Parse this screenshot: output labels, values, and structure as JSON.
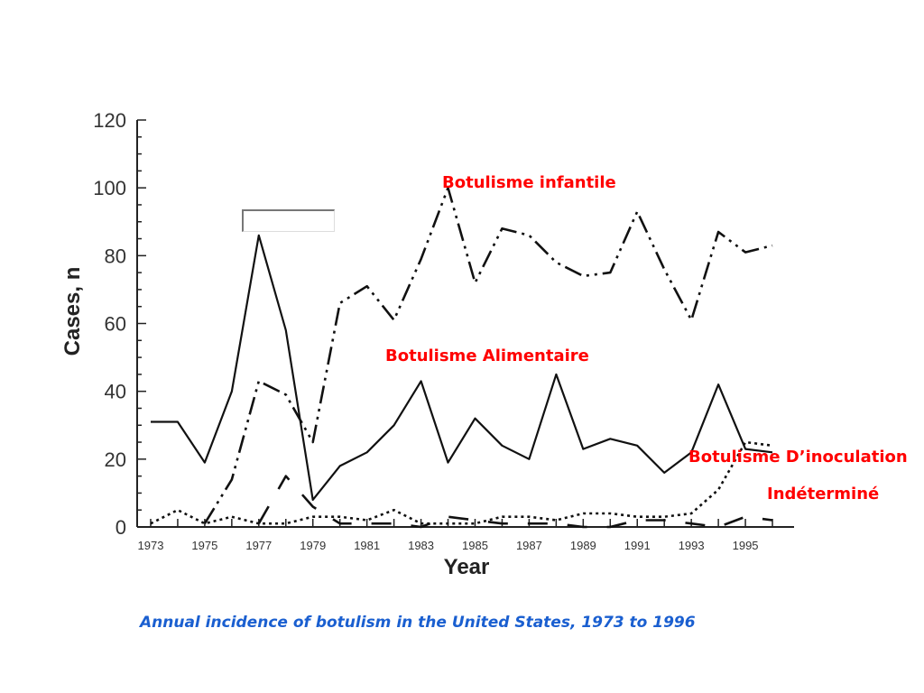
{
  "chart_data": {
    "type": "line",
    "xlabel": "Year",
    "ylabel": "Cases, n",
    "xlim": [
      1972.5,
      1996.8
    ],
    "ylim": [
      0,
      120
    ],
    "y_ticks": [
      "0",
      "20",
      "40",
      "60",
      "80",
      "100",
      "120"
    ],
    "x_ticks": [
      "1973",
      "1975",
      "1977",
      "1979",
      "1981",
      "1983",
      "1985",
      "1987",
      "1989",
      "1991",
      "1993",
      "1995"
    ],
    "x": [
      1973,
      1974,
      1975,
      1976,
      1977,
      1978,
      1979,
      1980,
      1981,
      1982,
      1983,
      1984,
      1985,
      1986,
      1987,
      1988,
      1989,
      1990,
      1991,
      1992,
      1993,
      1994,
      1995,
      1996
    ],
    "series": [
      {
        "name": "Botulisme Alimentaire",
        "style": "solid",
        "values": [
          31,
          31,
          19,
          40,
          86,
          58,
          8,
          18,
          22,
          30,
          43,
          19,
          32,
          24,
          20,
          45,
          23,
          26,
          24,
          16,
          22,
          42,
          23,
          22
        ]
      },
      {
        "name": "Botulisme infantile",
        "style": "dash-dot-dot",
        "values": [
          null,
          null,
          1,
          14,
          43,
          39,
          25,
          66,
          71,
          61,
          79,
          100,
          72,
          88,
          86,
          78,
          74,
          75,
          93,
          76,
          61,
          87,
          81,
          83
        ]
      },
      {
        "name": "Botulisme D’inoculation",
        "style": "dotted",
        "values": [
          1,
          5,
          1,
          3,
          1,
          1,
          3,
          3,
          2,
          5,
          1,
          1,
          1,
          3,
          3,
          2,
          4,
          4,
          3,
          3,
          4,
          11,
          25,
          24
        ]
      },
      {
        "name": "Indéterminé",
        "style": "long-dash",
        "values": [
          null,
          null,
          null,
          null,
          1,
          15,
          6,
          1,
          1,
          1,
          0,
          3,
          2,
          1,
          1,
          1,
          0,
          0,
          2,
          2,
          1,
          0,
          3,
          2
        ]
      }
    ]
  },
  "annotations": {
    "infant": "Botulisme infantile",
    "food": "Botulisme Alimentaire",
    "wound": "Botulisme D’inoculation",
    "undetermined": "Indéterminé"
  },
  "caption": "Annual incidence of botulism in the United States, 1973 to 1996",
  "colors": {
    "annotation": "#ff0000",
    "caption": "#1a5fd0",
    "line": "#111111"
  }
}
